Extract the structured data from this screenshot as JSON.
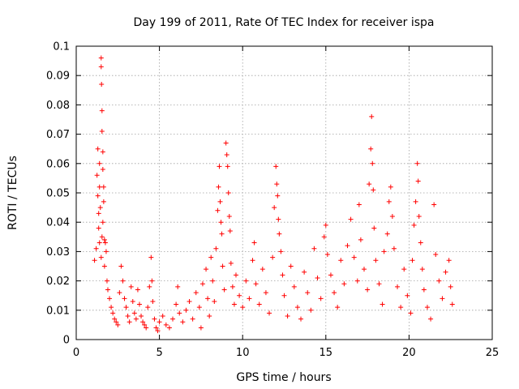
{
  "chart_data": {
    "type": "scatter",
    "title": "Day 199 of 2011, Rate Of TEC Index for receiver ispa",
    "xlabel": "GPS time / hours",
    "ylabel": "ROTI / TECUs",
    "xlim": [
      0,
      25
    ],
    "ylim": [
      0,
      0.1
    ],
    "x_ticks": [
      "0",
      "5",
      "10",
      "15",
      "20",
      "25"
    ],
    "y_ticks": [
      "0",
      "0.01",
      "0.02",
      "0.03",
      "0.04",
      "0.05",
      "0.06",
      "0.07",
      "0.08",
      "0.09",
      "0.1"
    ],
    "grid": true,
    "marker": "+",
    "color": "#ff0000",
    "series": [
      {
        "points": [
          [
            1.1,
            0.027
          ],
          [
            1.2,
            0.031
          ],
          [
            1.25,
            0.056
          ],
          [
            1.3,
            0.065
          ],
          [
            1.3,
            0.049
          ],
          [
            1.35,
            0.043
          ],
          [
            1.35,
            0.038
          ],
          [
            1.4,
            0.06
          ],
          [
            1.4,
            0.052
          ],
          [
            1.45,
            0.045
          ],
          [
            1.5,
            0.096
          ],
          [
            1.5,
            0.093
          ],
          [
            1.52,
            0.087
          ],
          [
            1.55,
            0.078
          ],
          [
            1.55,
            0.071
          ],
          [
            1.6,
            0.064
          ],
          [
            1.6,
            0.058
          ],
          [
            1.65,
            0.052
          ],
          [
            1.65,
            0.047
          ],
          [
            1.6,
            0.04
          ],
          [
            1.55,
            0.035
          ],
          [
            1.7,
            0.034
          ],
          [
            1.75,
            0.033
          ],
          [
            1.8,
            0.03
          ],
          [
            1.5,
            0.028
          ],
          [
            1.4,
            0.033
          ],
          [
            1.7,
            0.025
          ],
          [
            1.85,
            0.02
          ],
          [
            1.9,
            0.017
          ],
          [
            2.0,
            0.014
          ],
          [
            2.1,
            0.011
          ],
          [
            2.2,
            0.009
          ],
          [
            2.3,
            0.007
          ],
          [
            2.4,
            0.006
          ],
          [
            2.5,
            0.005
          ],
          [
            2.6,
            0.016
          ],
          [
            2.7,
            0.025
          ],
          [
            2.8,
            0.02
          ],
          [
            2.9,
            0.014
          ],
          [
            3.0,
            0.011
          ],
          [
            3.1,
            0.008
          ],
          [
            3.2,
            0.006
          ],
          [
            3.3,
            0.018
          ],
          [
            3.4,
            0.013
          ],
          [
            3.5,
            0.009
          ],
          [
            3.6,
            0.007
          ],
          [
            3.7,
            0.017
          ],
          [
            3.8,
            0.012
          ],
          [
            3.9,
            0.008
          ],
          [
            4.0,
            0.006
          ],
          [
            4.1,
            0.005
          ],
          [
            4.2,
            0.004
          ],
          [
            4.3,
            0.011
          ],
          [
            4.4,
            0.018
          ],
          [
            4.5,
            0.028
          ],
          [
            4.55,
            0.02
          ],
          [
            4.6,
            0.013
          ],
          [
            4.7,
            0.007
          ],
          [
            4.8,
            0.004
          ],
          [
            4.9,
            0.003
          ],
          [
            5.0,
            0.006
          ],
          [
            5.2,
            0.008
          ],
          [
            5.4,
            0.005
          ],
          [
            5.6,
            0.004
          ],
          [
            5.8,
            0.007
          ],
          [
            6.0,
            0.012
          ],
          [
            6.1,
            0.018
          ],
          [
            6.2,
            0.009
          ],
          [
            6.4,
            0.006
          ],
          [
            6.6,
            0.01
          ],
          [
            6.8,
            0.013
          ],
          [
            7.0,
            0.007
          ],
          [
            7.2,
            0.016
          ],
          [
            7.4,
            0.011
          ],
          [
            7.5,
            0.004
          ],
          [
            7.6,
            0.019
          ],
          [
            7.8,
            0.024
          ],
          [
            7.9,
            0.014
          ],
          [
            8.0,
            0.008
          ],
          [
            8.1,
            0.028
          ],
          [
            8.2,
            0.02
          ],
          [
            8.3,
            0.013
          ],
          [
            8.4,
            0.031
          ],
          [
            8.5,
            0.044
          ],
          [
            8.55,
            0.052
          ],
          [
            8.6,
            0.059
          ],
          [
            8.65,
            0.047
          ],
          [
            8.7,
            0.04
          ],
          [
            8.75,
            0.036
          ],
          [
            8.8,
            0.025
          ],
          [
            8.9,
            0.017
          ],
          [
            9.0,
            0.067
          ],
          [
            9.05,
            0.063
          ],
          [
            9.1,
            0.059
          ],
          [
            9.15,
            0.05
          ],
          [
            9.2,
            0.042
          ],
          [
            9.25,
            0.037
          ],
          [
            9.3,
            0.026
          ],
          [
            9.4,
            0.018
          ],
          [
            9.5,
            0.012
          ],
          [
            9.6,
            0.022
          ],
          [
            9.8,
            0.015
          ],
          [
            10.0,
            0.011
          ],
          [
            10.2,
            0.02
          ],
          [
            10.4,
            0.014
          ],
          [
            10.6,
            0.027
          ],
          [
            10.7,
            0.033
          ],
          [
            10.8,
            0.019
          ],
          [
            11.0,
            0.012
          ],
          [
            11.2,
            0.024
          ],
          [
            11.4,
            0.016
          ],
          [
            11.6,
            0.009
          ],
          [
            11.8,
            0.028
          ],
          [
            11.9,
            0.045
          ],
          [
            12.0,
            0.059
          ],
          [
            12.05,
            0.053
          ],
          [
            12.1,
            0.049
          ],
          [
            12.15,
            0.041
          ],
          [
            12.2,
            0.036
          ],
          [
            12.3,
            0.03
          ],
          [
            12.4,
            0.022
          ],
          [
            12.5,
            0.015
          ],
          [
            12.7,
            0.008
          ],
          [
            12.9,
            0.025
          ],
          [
            13.1,
            0.018
          ],
          [
            13.3,
            0.011
          ],
          [
            13.5,
            0.007
          ],
          [
            13.7,
            0.023
          ],
          [
            13.9,
            0.016
          ],
          [
            14.1,
            0.01
          ],
          [
            14.3,
            0.031
          ],
          [
            14.5,
            0.021
          ],
          [
            14.7,
            0.014
          ],
          [
            14.9,
            0.035
          ],
          [
            15.0,
            0.039
          ],
          [
            15.1,
            0.029
          ],
          [
            15.3,
            0.022
          ],
          [
            15.5,
            0.016
          ],
          [
            15.7,
            0.011
          ],
          [
            15.9,
            0.027
          ],
          [
            16.1,
            0.019
          ],
          [
            16.3,
            0.032
          ],
          [
            16.5,
            0.041
          ],
          [
            16.7,
            0.028
          ],
          [
            16.9,
            0.02
          ],
          [
            17.0,
            0.046
          ],
          [
            17.1,
            0.034
          ],
          [
            17.3,
            0.024
          ],
          [
            17.5,
            0.017
          ],
          [
            17.6,
            0.053
          ],
          [
            17.7,
            0.065
          ],
          [
            17.75,
            0.076
          ],
          [
            17.8,
            0.06
          ],
          [
            17.85,
            0.051
          ],
          [
            17.9,
            0.038
          ],
          [
            18.0,
            0.027
          ],
          [
            18.2,
            0.019
          ],
          [
            18.4,
            0.012
          ],
          [
            18.5,
            0.03
          ],
          [
            18.7,
            0.036
          ],
          [
            18.8,
            0.047
          ],
          [
            18.9,
            0.052
          ],
          [
            19.0,
            0.042
          ],
          [
            19.1,
            0.031
          ],
          [
            19.3,
            0.018
          ],
          [
            19.5,
            0.011
          ],
          [
            19.7,
            0.024
          ],
          [
            19.9,
            0.015
          ],
          [
            20.1,
            0.009
          ],
          [
            20.2,
            0.027
          ],
          [
            20.3,
            0.039
          ],
          [
            20.4,
            0.047
          ],
          [
            20.5,
            0.06
          ],
          [
            20.55,
            0.054
          ],
          [
            20.6,
            0.042
          ],
          [
            20.7,
            0.033
          ],
          [
            20.8,
            0.024
          ],
          [
            20.9,
            0.017
          ],
          [
            21.1,
            0.011
          ],
          [
            21.3,
            0.007
          ],
          [
            21.5,
            0.046
          ],
          [
            21.6,
            0.029
          ],
          [
            21.8,
            0.02
          ],
          [
            22.0,
            0.014
          ],
          [
            22.2,
            0.023
          ],
          [
            22.4,
            0.027
          ],
          [
            22.5,
            0.018
          ],
          [
            22.6,
            0.012
          ]
        ]
      }
    ]
  }
}
